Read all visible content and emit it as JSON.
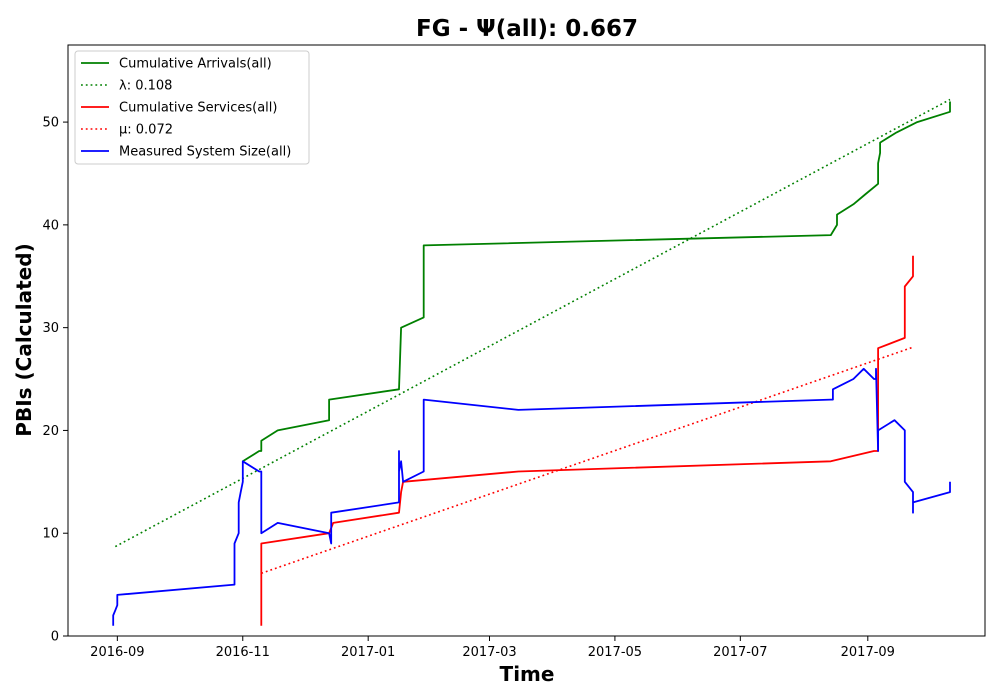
{
  "chart_data": {
    "type": "line",
    "title": "FG -  Ψ(all): 0.667",
    "xlabel": "Time",
    "ylabel": "PBIs (Calculated)",
    "xlim": [
      "2016-08-08",
      "2017-10-28"
    ],
    "ylim": [
      0,
      57.5
    ],
    "x_ticks": [
      "2016-09",
      "2016-11",
      "2017-01",
      "2017-03",
      "2017-05",
      "2017-07",
      "2017-09"
    ],
    "y_ticks": [
      0,
      10,
      20,
      30,
      40,
      50
    ],
    "legend": {
      "position": "top-left"
    },
    "series": [
      {
        "name": "Cumulative Arrivals(all)",
        "color": "#008000",
        "style": "solid",
        "points": [
          [
            "2016-11-01",
            17
          ],
          [
            "2016-11-09",
            18
          ],
          [
            "2016-11-10",
            18
          ],
          [
            "2016-11-10",
            19
          ],
          [
            "2016-11-18",
            20
          ],
          [
            "2016-12-13",
            21
          ],
          [
            "2016-12-13",
            23
          ],
          [
            "2017-01-16",
            24
          ],
          [
            "2017-01-17",
            30
          ],
          [
            "2017-01-28",
            31
          ],
          [
            "2017-01-28",
            38
          ],
          [
            "2017-08-14",
            39
          ],
          [
            "2017-08-17",
            40
          ],
          [
            "2017-08-17",
            41
          ],
          [
            "2017-08-25",
            42
          ],
          [
            "2017-08-31",
            43
          ],
          [
            "2017-09-06",
            44
          ],
          [
            "2017-09-06",
            46
          ],
          [
            "2017-09-07",
            47
          ],
          [
            "2017-09-07",
            48
          ],
          [
            "2017-09-15",
            49
          ],
          [
            "2017-09-25",
            50
          ],
          [
            "2017-10-11",
            51
          ],
          [
            "2017-10-11",
            52
          ]
        ]
      },
      {
        "name": "λ: 0.108",
        "color": "#008000",
        "style": "dotted",
        "points": [
          [
            "2016-08-31",
            8.7
          ],
          [
            "2017-10-11",
            52.2
          ]
        ]
      },
      {
        "name": "Cumulative Services(all)",
        "color": "#ff0000",
        "style": "solid",
        "points": [
          [
            "2016-11-10",
            1
          ],
          [
            "2016-11-10",
            8
          ],
          [
            "2016-11-10",
            9
          ],
          [
            "2016-12-13",
            10
          ],
          [
            "2016-12-15",
            11
          ],
          [
            "2017-01-16",
            12
          ],
          [
            "2017-01-17",
            14
          ],
          [
            "2017-01-18",
            15
          ],
          [
            "2017-03-15",
            16
          ],
          [
            "2017-08-14",
            17
          ],
          [
            "2017-09-04",
            18
          ],
          [
            "2017-09-06",
            18
          ],
          [
            "2017-09-06",
            28
          ],
          [
            "2017-09-19",
            29
          ],
          [
            "2017-09-19",
            34
          ],
          [
            "2017-09-23",
            35
          ],
          [
            "2017-09-23",
            37
          ]
        ]
      },
      {
        "name": "μ: 0.072",
        "color": "#ff0000",
        "style": "dotted",
        "points": [
          [
            "2016-11-10",
            6.1
          ],
          [
            "2017-09-23",
            28.1
          ]
        ]
      },
      {
        "name": "Measured System Size(all)",
        "color": "#0000ff",
        "style": "solid",
        "points": [
          [
            "2016-08-30",
            1
          ],
          [
            "2016-08-30",
            2
          ],
          [
            "2016-08-31",
            2.5
          ],
          [
            "2016-09-01",
            3
          ],
          [
            "2016-09-01",
            4
          ],
          [
            "2016-10-28",
            5
          ],
          [
            "2016-10-28",
            9
          ],
          [
            "2016-10-30",
            10
          ],
          [
            "2016-10-30",
            13
          ],
          [
            "2016-10-31",
            14
          ],
          [
            "2016-11-01",
            15
          ],
          [
            "2016-11-01",
            17
          ],
          [
            "2016-11-09",
            16
          ],
          [
            "2016-11-10",
            16
          ],
          [
            "2016-11-10",
            10
          ],
          [
            "2016-11-18",
            11
          ],
          [
            "2016-12-13",
            10
          ],
          [
            "2016-12-14",
            9
          ],
          [
            "2016-12-14",
            12
          ],
          [
            "2017-01-16",
            13
          ],
          [
            "2017-01-16",
            18
          ],
          [
            "2017-01-16",
            16
          ],
          [
            "2017-01-17",
            17
          ],
          [
            "2017-01-18",
            15
          ],
          [
            "2017-01-28",
            16
          ],
          [
            "2017-01-28",
            23
          ],
          [
            "2017-03-15",
            22
          ],
          [
            "2017-08-14",
            23
          ],
          [
            "2017-08-15",
            23
          ],
          [
            "2017-08-15",
            24
          ],
          [
            "2017-08-25",
            25
          ],
          [
            "2017-08-30",
            26
          ],
          [
            "2017-09-04",
            25
          ],
          [
            "2017-09-05",
            25
          ],
          [
            "2017-09-05",
            26
          ],
          [
            "2017-09-06",
            18
          ],
          [
            "2017-09-06",
            20
          ],
          [
            "2017-09-14",
            21
          ],
          [
            "2017-09-19",
            20
          ],
          [
            "2017-09-19",
            15
          ],
          [
            "2017-09-23",
            14
          ],
          [
            "2017-09-23",
            12
          ],
          [
            "2017-09-23",
            13
          ],
          [
            "2017-10-11",
            14
          ],
          [
            "2017-10-11",
            15
          ]
        ]
      }
    ]
  }
}
